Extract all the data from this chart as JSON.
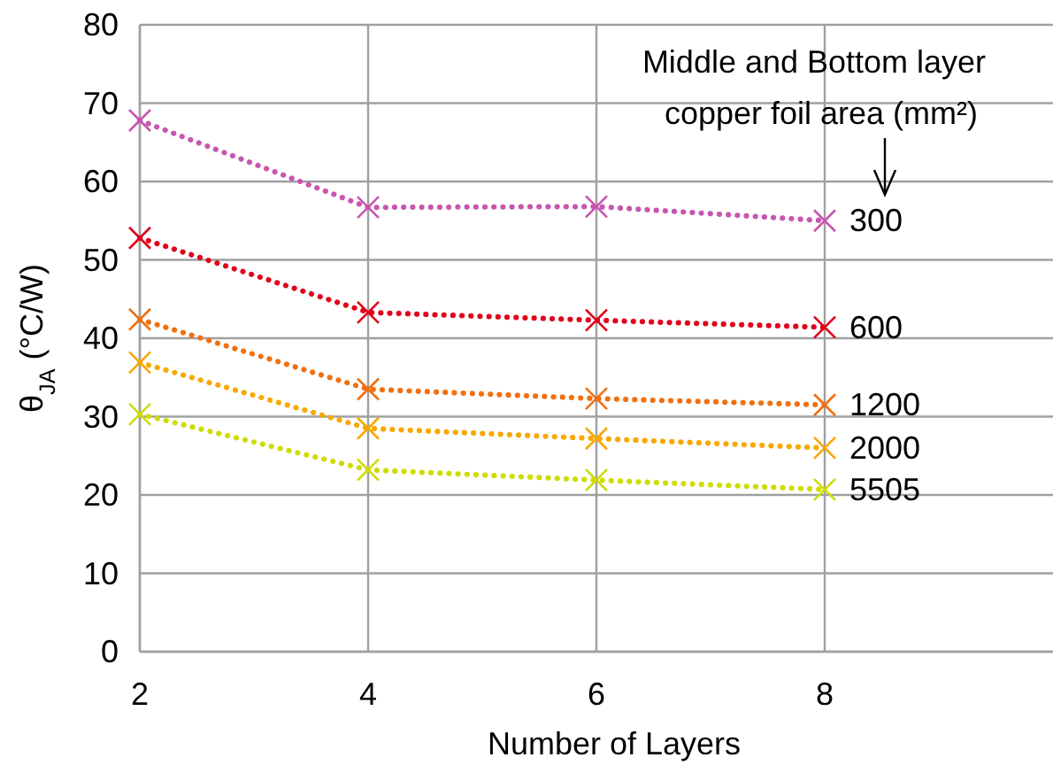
{
  "chart_data": {
    "type": "line",
    "xlabel": "Number of Layers",
    "ylabel": "θ$_{JA}$ (°C/W)",
    "x": [
      2,
      4,
      6,
      8
    ],
    "xlim": [
      2,
      10
    ],
    "xticks": [
      2,
      4,
      6,
      8
    ],
    "ylim": [
      0,
      80
    ],
    "yticks": [
      0,
      10,
      20,
      30,
      40,
      50,
      60,
      70,
      80
    ],
    "grid": true,
    "marker": "cross",
    "line_style": "dotted",
    "annotations": [
      "Middle and Bottom layer copper foil area (mm²)"
    ],
    "series": [
      {
        "name": "300",
        "color": "#c855b0",
        "values": [
          67.8,
          56.7,
          56.8,
          55.0
        ]
      },
      {
        "name": "600",
        "color": "#e0001b",
        "values": [
          52.8,
          43.3,
          42.3,
          41.4
        ]
      },
      {
        "name": "1200",
        "color": "#f07010",
        "values": [
          42.4,
          33.5,
          32.3,
          31.5
        ]
      },
      {
        "name": "2000",
        "color": "#f8a800",
        "values": [
          36.9,
          28.5,
          27.2,
          26.0
        ]
      },
      {
        "name": "5505",
        "color": "#d0dc00",
        "values": [
          30.3,
          23.2,
          21.9,
          20.7
        ]
      }
    ]
  }
}
